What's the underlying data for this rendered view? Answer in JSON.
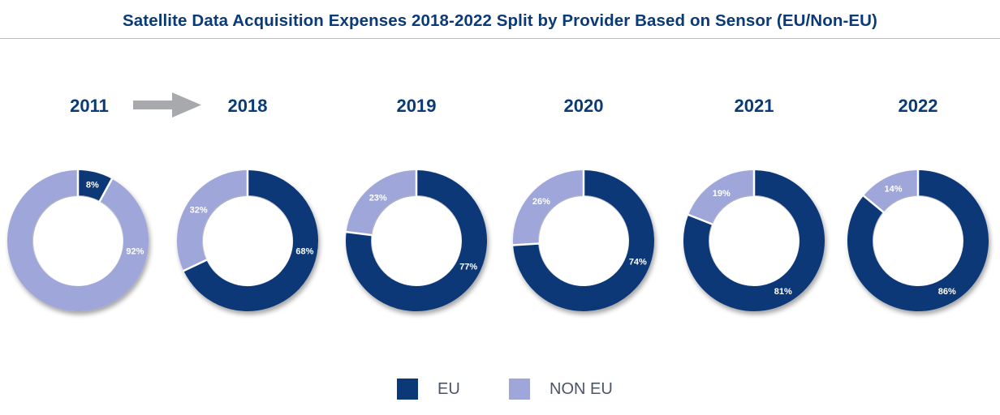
{
  "colors": {
    "eu": "#0b3877",
    "non_eu": "#9fa7da",
    "title": "#0a3a78"
  },
  "chart_data": {
    "type": "pie",
    "title": "Satellite Data Acquisition Expenses 2018-2022 Split by Provider Based on Sensor (EU/Non-EU)",
    "legend": {
      "placement": "bottom-center",
      "entries": [
        "EU",
        "NON EU"
      ]
    },
    "donuts": [
      {
        "year": "2011",
        "eu": 8,
        "non_eu": 92,
        "eu_label": "8%",
        "non_eu_label": "92%"
      },
      {
        "year": "2018",
        "eu": 68,
        "non_eu": 32,
        "eu_label": "68%",
        "non_eu_label": "32%"
      },
      {
        "year": "2019",
        "eu": 77,
        "non_eu": 23,
        "eu_label": "77%",
        "non_eu_label": "23%"
      },
      {
        "year": "2020",
        "eu": 74,
        "non_eu": 26,
        "eu_label": "74%",
        "non_eu_label": "26%"
      },
      {
        "year": "2021",
        "eu": 81,
        "non_eu": 19,
        "eu_label": "81%",
        "non_eu_label": "19%"
      },
      {
        "year": "2022",
        "eu": 86,
        "non_eu": 14,
        "eu_label": "86%",
        "non_eu_label": "14%"
      }
    ]
  }
}
